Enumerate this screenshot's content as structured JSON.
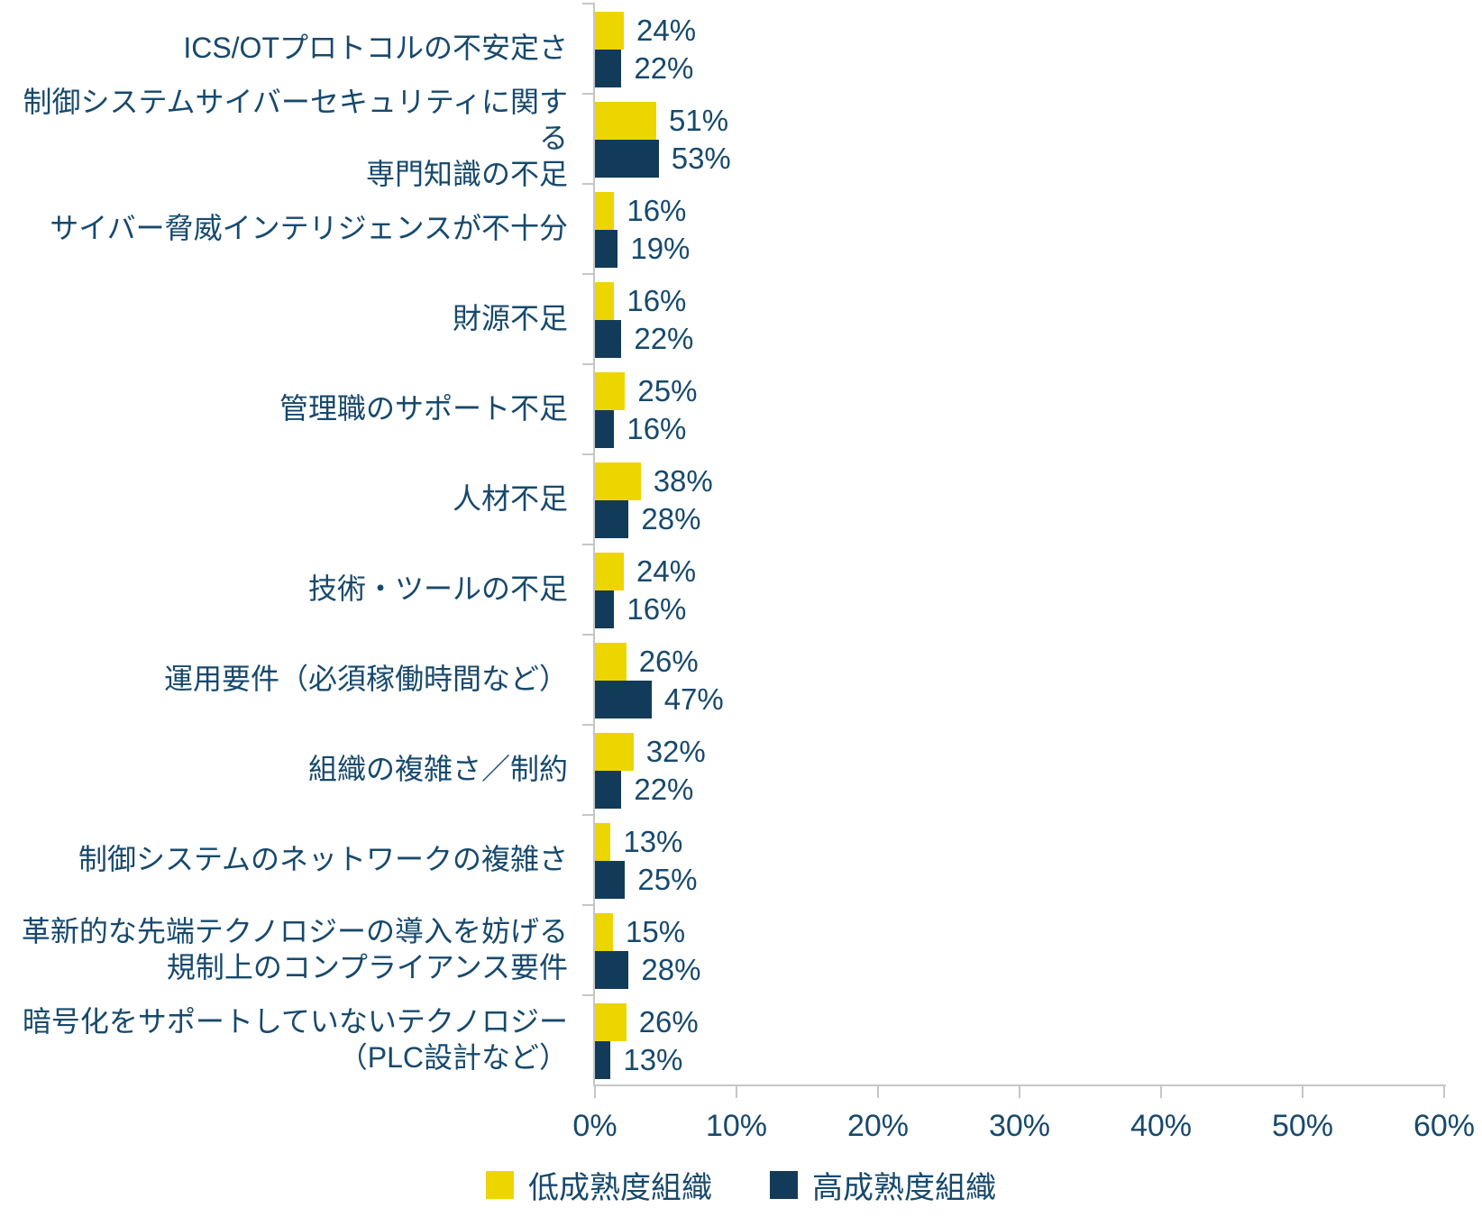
{
  "chart_data": {
    "type": "bar",
    "orientation": "horizontal",
    "grid": false,
    "legend_position": "bottom",
    "value_suffix": "%",
    "xlim": [
      0,
      60
    ],
    "x_tick_labels": [
      "0%",
      "10%",
      "20%",
      "30%",
      "40%",
      "50%",
      "60%"
    ],
    "categories": [
      "ICS/OTプロトコルの不安定さ",
      "制御システムサイバーセキュリティに関する\n専門知識の不足",
      "サイバー脅威インテリジェンスが不十分",
      "財源不足",
      "管理職のサポート不足",
      "人材不足",
      "技術・ツールの不足",
      "運用要件（必須稼働時間など）",
      "組織の複雑さ／制約",
      "制御システムのネットワークの複雑さ",
      "革新的な先端テクノロジーの導入を妨げる\n規制上のコンプライアンス要件",
      "暗号化をサポートしていないテクノロジー\n（PLC設計など）"
    ],
    "series": [
      {
        "name": "低成熟度組織",
        "color": "#EDD500",
        "values": [
          24,
          51,
          16,
          16,
          25,
          38,
          24,
          26,
          32,
          13,
          15,
          26
        ]
      },
      {
        "name": "高成熟度組織",
        "color": "#113B59",
        "values": [
          22,
          53,
          19,
          22,
          16,
          28,
          16,
          47,
          22,
          25,
          28,
          13
        ]
      }
    ]
  },
  "colors": {
    "text": "#17496D",
    "axis": "#C6C6C6"
  }
}
